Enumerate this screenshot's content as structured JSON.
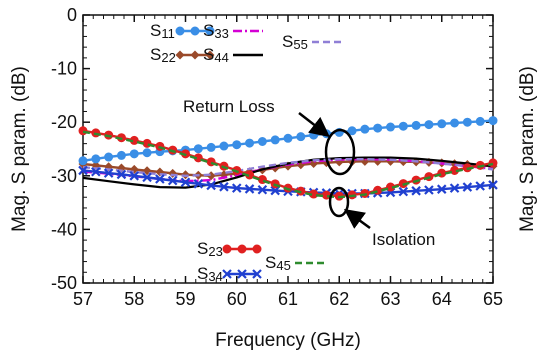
{
  "chart_data": [
    {
      "type": "line",
      "xlabel": "Frequency (GHz)",
      "ylabel": "Mag. S param. (dB)",
      "xlim": [
        57,
        65
      ],
      "ylim": [
        -50,
        0
      ],
      "xticks": [
        "57",
        "58",
        "59",
        "60",
        "61",
        "62",
        "63",
        "64",
        "65"
      ],
      "yticks": [
        "0",
        "-10",
        "-20",
        "-30",
        "-40",
        "-50"
      ],
      "grid": false,
      "legend": "inside",
      "series": [
        {
          "name": "S11",
          "label_main": "S",
          "label_sub": "11",
          "color": "#3a8ee6",
          "marker": "circle",
          "dash": "solid",
          "x": [
            57,
            57.5,
            58,
            58.5,
            59,
            59.5,
            60,
            60.5,
            61,
            61.5,
            62,
            62.5,
            63,
            63.5,
            64,
            64.5,
            65
          ],
          "y": [
            -27.2,
            -26.5,
            -25.9,
            -25.5,
            -25.2,
            -24.7,
            -24.2,
            -23.6,
            -23.0,
            -22.4,
            -21.9,
            -21.3,
            -20.9,
            -20.6,
            -20.3,
            -20.0,
            -19.7
          ]
        },
        {
          "name": "S22",
          "label_main": "S",
          "label_sub": "22",
          "color": "#9a4a2a",
          "marker": "diamond",
          "dash": "solid",
          "x": [
            57,
            57.5,
            58,
            58.5,
            59,
            59.5,
            60,
            60.5,
            61,
            61.5,
            62,
            62.5,
            63,
            63.5,
            64,
            64.5,
            65
          ],
          "y": [
            -27.8,
            -28.3,
            -28.8,
            -29.3,
            -29.8,
            -30.0,
            -29.6,
            -28.9,
            -28.2,
            -27.7,
            -27.4,
            -27.3,
            -27.3,
            -27.4,
            -27.6,
            -27.9,
            -28.2
          ]
        },
        {
          "name": "S33",
          "label_main": "S",
          "label_sub": "33",
          "color": "#d400d4",
          "marker": "none",
          "dash": "dashdot",
          "x": [
            57,
            57.5,
            58,
            58.5,
            59,
            59.5,
            60,
            60.5,
            61,
            61.5,
            62,
            62.5,
            63,
            63.5,
            64,
            64.5,
            65
          ],
          "y": [
            -29.2,
            -29.6,
            -30.1,
            -30.6,
            -31.0,
            -30.8,
            -29.9,
            -28.8,
            -27.9,
            -27.3,
            -27.0,
            -26.9,
            -27.0,
            -27.3,
            -27.7,
            -28.2,
            -28.7
          ]
        },
        {
          "name": "S44",
          "label_main": "S",
          "label_sub": "44",
          "color": "#000000",
          "marker": "none",
          "dash": "solid",
          "x": [
            57,
            57.5,
            58,
            58.5,
            59,
            59.5,
            60,
            60.5,
            61,
            61.5,
            62,
            62.5,
            63,
            63.5,
            64,
            64.5,
            65
          ],
          "y": [
            -30.4,
            -31.0,
            -31.6,
            -32.1,
            -32.2,
            -31.6,
            -30.3,
            -28.8,
            -27.7,
            -27.0,
            -26.7,
            -26.6,
            -26.6,
            -26.8,
            -27.2,
            -27.7,
            -28.2
          ]
        },
        {
          "name": "S55",
          "label_main": "S",
          "label_sub": "55",
          "color": "#8f7fd6",
          "marker": "none",
          "dash": "dashed",
          "x": [
            57,
            57.5,
            58,
            58.5,
            59,
            59.5,
            60,
            60.5,
            61,
            61.5,
            62,
            62.5,
            63,
            63.5,
            64,
            64.5,
            65
          ],
          "y": [
            -28.4,
            -28.8,
            -29.3,
            -29.7,
            -30.0,
            -29.8,
            -29.1,
            -28.3,
            -27.6,
            -27.1,
            -26.9,
            -26.9,
            -27.0,
            -27.3,
            -27.7,
            -28.2,
            -28.8
          ]
        },
        {
          "name": "S23",
          "label_main": "S",
          "label_sub": "23",
          "color": "#e02020",
          "marker": "circle",
          "dash": "solid",
          "x": [
            57,
            57.5,
            58,
            58.5,
            59,
            59.5,
            60,
            60.5,
            61,
            61.5,
            62,
            62.5,
            63,
            63.5,
            64,
            64.5,
            65
          ],
          "y": [
            -21.6,
            -22.4,
            -23.4,
            -24.5,
            -25.9,
            -27.4,
            -29.0,
            -30.7,
            -32.3,
            -33.4,
            -33.8,
            -33.3,
            -32.1,
            -30.8,
            -29.5,
            -28.5,
            -27.6
          ]
        },
        {
          "name": "S34",
          "label_main": "S",
          "label_sub": "34",
          "color": "#2040d0",
          "marker": "cross",
          "dash": "solid",
          "x": [
            57,
            57.5,
            58,
            58.5,
            59,
            59.5,
            60,
            60.5,
            61,
            61.5,
            62,
            62.5,
            63,
            63.5,
            64,
            64.5,
            65
          ],
          "y": [
            -29.0,
            -29.5,
            -30.0,
            -30.6,
            -31.2,
            -31.8,
            -32.3,
            -32.6,
            -32.9,
            -33.1,
            -33.3,
            -33.3,
            -33.1,
            -32.8,
            -32.5,
            -32.1,
            -31.7
          ]
        },
        {
          "name": "S45",
          "label_main": "S",
          "label_sub": "45",
          "color": "#2e8b2e",
          "marker": "none",
          "dash": "dashed",
          "x": [
            57,
            57.5,
            58,
            58.5,
            59,
            59.5,
            60,
            60.5,
            61,
            61.5,
            62,
            62.5,
            63,
            63.5,
            64,
            64.5,
            65
          ],
          "y": [
            -21.8,
            -22.6,
            -23.6,
            -24.7,
            -26.1,
            -27.6,
            -29.2,
            -30.9,
            -32.5,
            -33.6,
            -34.0,
            -33.5,
            -32.3,
            -31.0,
            -29.7,
            -28.7,
            -27.8
          ]
        }
      ],
      "annotations": {
        "return_loss": "Return Loss",
        "isolation": "Isolation"
      }
    },
    {
      "type": "line",
      "ylabel": "Mag. S param. (dB)",
      "partial": true
    }
  ]
}
